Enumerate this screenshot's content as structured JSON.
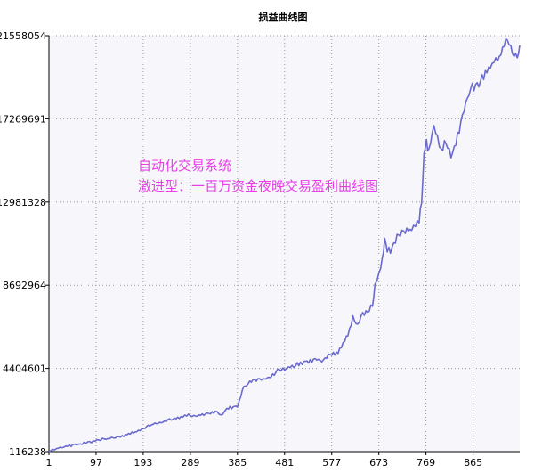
{
  "chart_data": {
    "type": "line",
    "title": "损益曲线图",
    "xlabel": "",
    "ylabel": "",
    "x_ticks": [
      1,
      97,
      193,
      289,
      385,
      481,
      577,
      673,
      769,
      865
    ],
    "y_ticks": [
      116238,
      4404601,
      8692964,
      12981328,
      17269691,
      21558054
    ],
    "xlim": [
      1,
      960
    ],
    "ylim": [
      116238,
      21558054
    ],
    "grid": true,
    "annotations": [
      "自动化交易系统",
      "激进型：一百万资金夜晚交易盈利曲线图"
    ],
    "series": [
      {
        "color": "#6a6acd",
        "x": [
          1,
          20,
          50,
          80,
          110,
          140,
          160,
          180,
          193,
          210,
          230,
          250,
          270,
          289,
          300,
          320,
          340,
          355,
          360,
          380,
          385,
          395,
          400,
          420,
          430,
          450,
          460,
          470,
          481,
          500,
          520,
          540,
          560,
          570,
          577,
          590,
          610,
          620,
          630,
          640,
          650,
          660,
          665,
          673,
          680,
          685,
          690,
          700,
          710,
          720,
          740,
          755,
          760,
          765,
          770,
          775,
          785,
          800,
          810,
          820,
          830,
          840,
          850,
          860,
          870,
          880,
          900,
          915,
          925,
          935,
          945,
          955,
          960
        ],
        "y": [
          116238,
          300000,
          450000,
          580000,
          750000,
          850000,
          1000000,
          1150000,
          1300000,
          1500000,
          1650000,
          1800000,
          1900000,
          2000000,
          1950000,
          2050000,
          2150000,
          2000000,
          2300000,
          2450000,
          2450000,
          3250000,
          3500000,
          3850000,
          3800000,
          3950000,
          4150000,
          4350000,
          4400000,
          4550000,
          4700000,
          4850000,
          4800000,
          5050000,
          5100000,
          5250000,
          6200000,
          7000000,
          6650000,
          7200000,
          7350000,
          7700000,
          8600000,
          9250000,
          10000000,
          11100000,
          10450000,
          10550000,
          11200000,
          11450000,
          11550000,
          12050000,
          13000000,
          15500000,
          16050000,
          15650000,
          16950000,
          15650000,
          16100000,
          15500000,
          16000000,
          17150000,
          18100000,
          18800000,
          19000000,
          19150000,
          20000000,
          20500000,
          20900000,
          21550000,
          20650000,
          20500000,
          21000000
        ]
      }
    ]
  }
}
